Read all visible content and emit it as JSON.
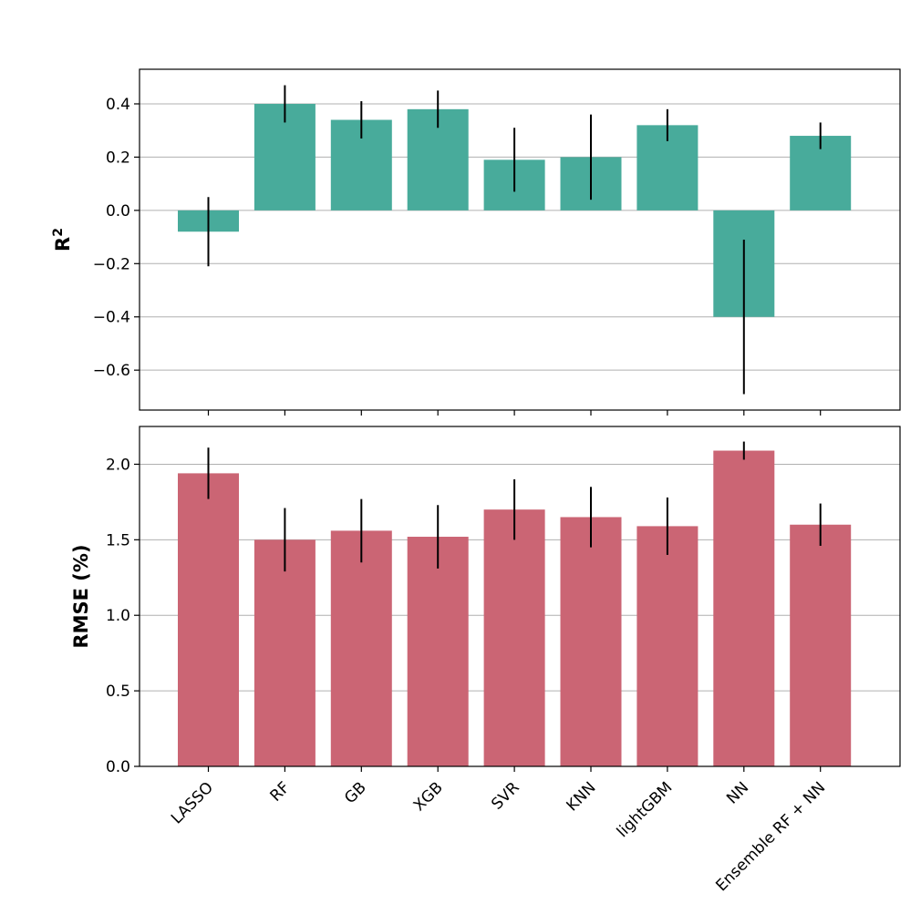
{
  "chart_data": [
    {
      "type": "bar",
      "ylabel": "R",
      "ylabel_sup": "2",
      "categories": [
        "LASSO",
        "RF",
        "GB",
        "XGB",
        "SVR",
        "KNN",
        "lightGBM",
        "NN",
        "Ensemble RF + NN"
      ],
      "values": [
        -0.08,
        0.4,
        0.34,
        0.38,
        0.19,
        0.2,
        0.32,
        -0.4,
        0.28
      ],
      "error_low": [
        -0.21,
        0.33,
        0.27,
        0.31,
        0.07,
        0.04,
        0.26,
        -0.69,
        0.23
      ],
      "error_high": [
        0.05,
        0.47,
        0.41,
        0.45,
        0.31,
        0.36,
        0.38,
        -0.11,
        0.33
      ],
      "ylim": [
        -0.75,
        0.53
      ],
      "yticks": [
        0.4,
        0.2,
        0.0,
        -0.2,
        -0.4,
        -0.6
      ],
      "ytick_labels": [
        "0.4",
        "0.2",
        "0.0",
        "−0.2",
        "−0.4",
        "−0.6"
      ],
      "color": "#48ab9b",
      "grid": true,
      "xtick_labels_shown": false
    },
    {
      "type": "bar",
      "ylabel": "RMSE (%)",
      "categories": [
        "LASSO",
        "RF",
        "GB",
        "XGB",
        "SVR",
        "KNN",
        "lightGBM",
        "NN",
        "Ensemble RF + NN"
      ],
      "values": [
        1.94,
        1.5,
        1.56,
        1.52,
        1.7,
        1.65,
        1.59,
        2.09,
        1.6
      ],
      "error_low": [
        1.77,
        1.29,
        1.35,
        1.31,
        1.5,
        1.45,
        1.4,
        2.03,
        1.46
      ],
      "error_high": [
        2.11,
        1.71,
        1.77,
        1.73,
        1.9,
        1.85,
        1.78,
        2.15,
        1.74
      ],
      "ylim": [
        0.0,
        2.25
      ],
      "yticks": [
        0.0,
        0.5,
        1.0,
        1.5,
        2.0
      ],
      "ytick_labels": [
        "0.0",
        "0.5",
        "1.0",
        "1.5",
        "2.0"
      ],
      "color": "#cb6574",
      "grid": true,
      "xtick_labels_shown": true
    }
  ]
}
